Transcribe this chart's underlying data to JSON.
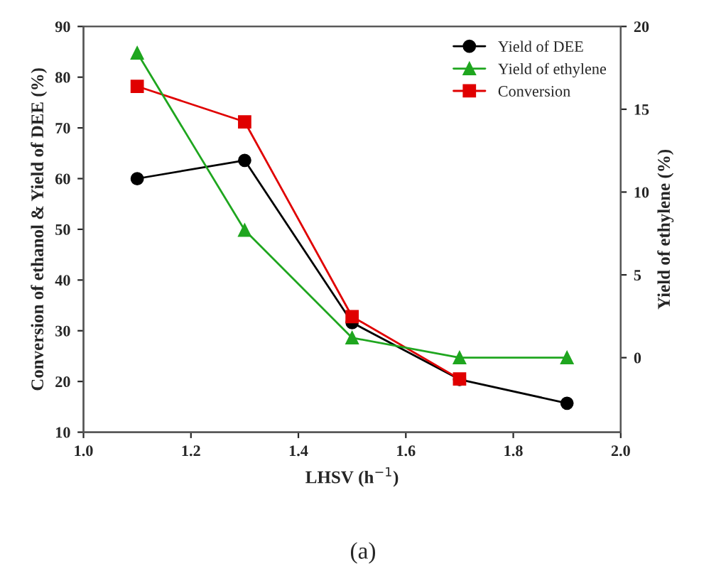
{
  "chart_data": {
    "type": "line",
    "xlabel": "LHSV (h$^{−1}$)",
    "ylabel": "Conversion of ethanol & Yield of DEE (%)",
    "y2label": "Yield of ethylene (%)",
    "x": [
      1.1,
      1.3,
      1.5,
      1.7,
      1.9
    ],
    "series": [
      {
        "name": "Yield of DEE",
        "color": "#000000",
        "marker": "circle",
        "values": [
          60,
          63.6,
          31.6,
          20.4,
          15.7
        ]
      },
      {
        "name": "Yield of ethylene",
        "color": "#1fa61f",
        "marker": "triangle",
        "axis": "y2",
        "values": [
          18.4,
          7.7,
          1.2,
          0,
          0
        ]
      },
      {
        "name": "Conversion",
        "color": "#e00000",
        "marker": "square",
        "values": [
          78.2,
          71.2,
          32.8,
          20.5,
          null
        ]
      }
    ],
    "xlim": [
      1.0,
      2.0
    ],
    "xticks": [
      {
        "value": 1.0,
        "label": "1.0"
      },
      1.2,
      1.4,
      1.6,
      1.8,
      {
        "value": 2.0,
        "label": "2.0"
      }
    ],
    "ylim": [
      10,
      90
    ],
    "yticks": [
      10,
      20,
      30,
      40,
      50,
      60,
      70,
      80,
      90
    ],
    "y2lim": [
      -4.5,
      20
    ],
    "y2ticks": [
      0,
      5,
      10,
      15,
      20
    ],
    "grid": false,
    "legend": "top right",
    "line_style": "solid",
    "annotations": [
      "(a)"
    ]
  }
}
